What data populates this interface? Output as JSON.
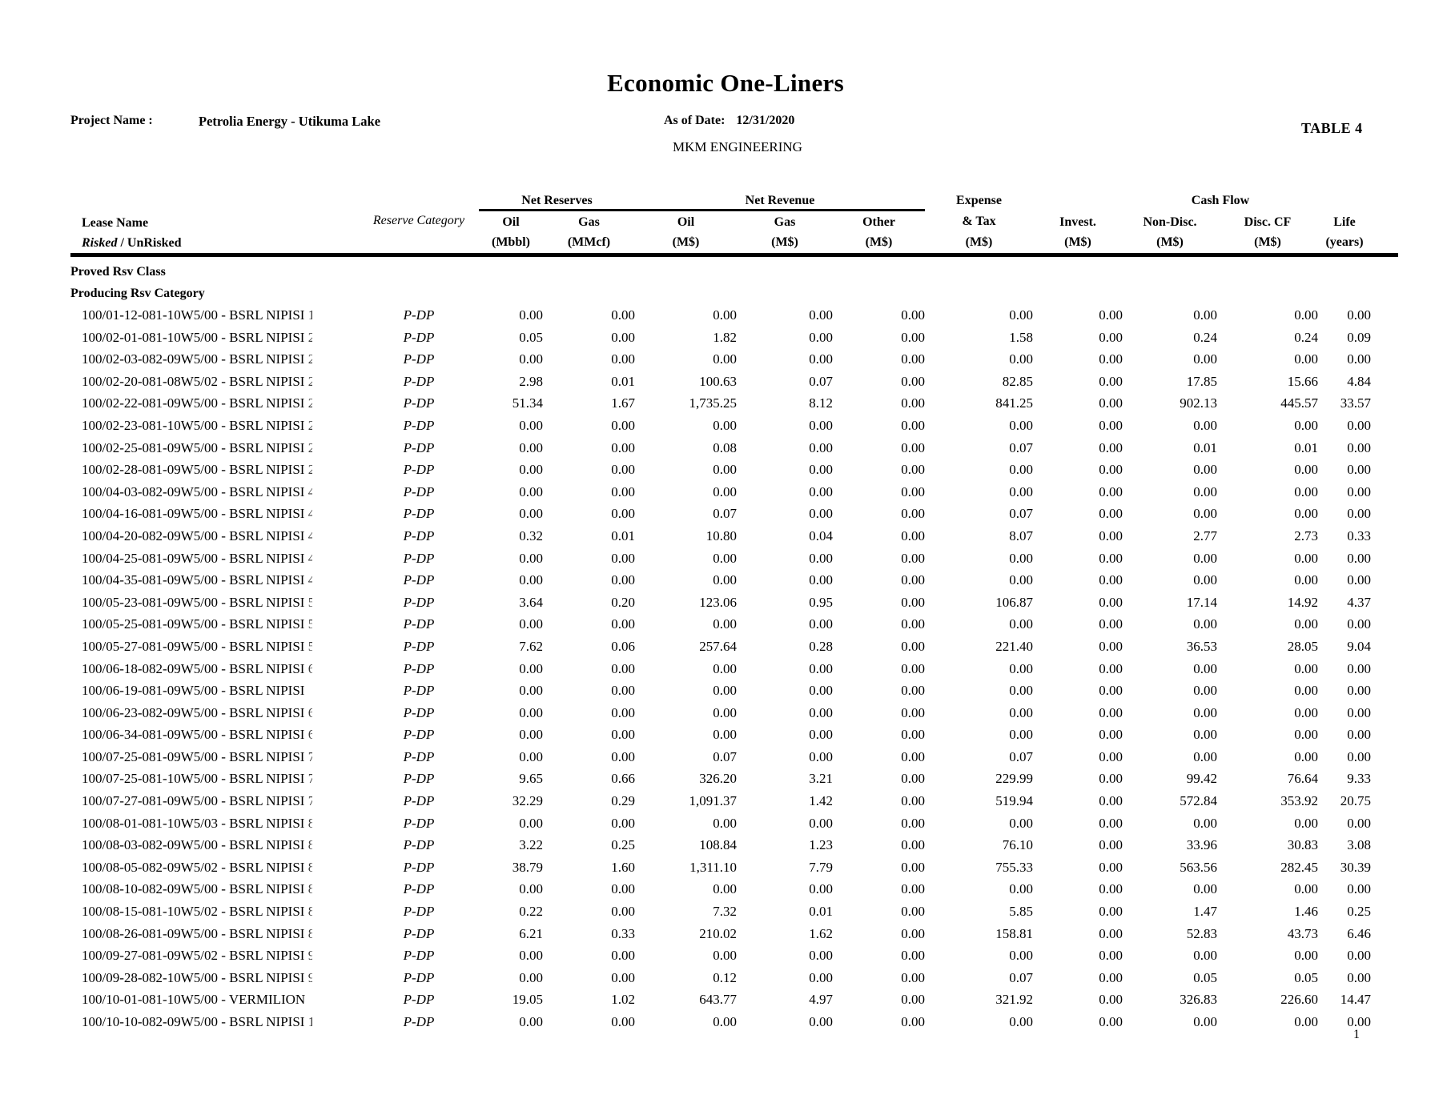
{
  "header": {
    "title": "Economic One-Liners",
    "project_label": "Project Name :",
    "project_name": "Petrolia Energy - Utikuma Lake",
    "as_of_label": "As of Date:",
    "as_of_date": "12/31/2020",
    "company": "MKM ENGINEERING",
    "table_label": "TABLE 4"
  },
  "table": {
    "groups": {
      "net_reserves": "Net Reserves",
      "net_revenue": "Net Revenue",
      "cash_flow": "Cash Flow"
    },
    "lease_header": {
      "line1": "Lease Name",
      "risked": "Risked",
      "unrisked": " / UnRisked"
    },
    "reserve_category_header": "Reserve Category",
    "cols": {
      "oil_res": {
        "name": "Oil",
        "unit": "(Mbbl)"
      },
      "gas_res": {
        "name": "Gas",
        "unit": "(MMcf)"
      },
      "oil_rev": {
        "name": "Oil",
        "unit": "(M$)"
      },
      "gas_rev": {
        "name": "Gas",
        "unit": "(M$)"
      },
      "other_rev": {
        "name": "Other",
        "unit": "(M$)"
      },
      "expense": {
        "line1": "Expense",
        "line2": "& Tax",
        "unit": "(M$)"
      },
      "invest": {
        "name": "Invest.",
        "unit": "(M$)"
      },
      "nondisc": {
        "name": "Non-Disc.",
        "unit": "(M$)"
      },
      "disccf": {
        "name": "Disc. CF",
        "unit": "(M$)"
      },
      "life": {
        "name": "Life",
        "unit": "(years)"
      }
    },
    "section_class": "Proved Rsv Class",
    "section_category": "Producing Rsv Category",
    "rows": [
      {
        "name": "100/01-12-081-10W5/00 - BSRL NIPISI",
        "partial": "1",
        "category": "P-DP",
        "values": [
          "0.00",
          "0.00",
          "0.00",
          "0.00",
          "0.00",
          "0.00",
          "0.00",
          "0.00",
          "0.00",
          "0.00"
        ]
      },
      {
        "name": "100/02-01-081-10W5/00 - BSRL NIPISI",
        "partial": "2",
        "category": "P-DP",
        "values": [
          "0.05",
          "0.00",
          "1.82",
          "0.00",
          "0.00",
          "1.58",
          "0.00",
          "0.24",
          "0.24",
          "0.09"
        ]
      },
      {
        "name": "100/02-03-082-09W5/00 - BSRL NIPISI",
        "partial": "2",
        "category": "P-DP",
        "values": [
          "0.00",
          "0.00",
          "0.00",
          "0.00",
          "0.00",
          "0.00",
          "0.00",
          "0.00",
          "0.00",
          "0.00"
        ]
      },
      {
        "name": "100/02-20-081-08W5/02 - BSRL NIPISI",
        "partial": "2",
        "category": "P-DP",
        "values": [
          "2.98",
          "0.01",
          "100.63",
          "0.07",
          "0.00",
          "82.85",
          "0.00",
          "17.85",
          "15.66",
          "4.84"
        ]
      },
      {
        "name": "100/02-22-081-09W5/00 - BSRL NIPISI",
        "partial": "2",
        "category": "P-DP",
        "values": [
          "51.34",
          "1.67",
          "1,735.25",
          "8.12",
          "0.00",
          "841.25",
          "0.00",
          "902.13",
          "445.57",
          "33.57"
        ]
      },
      {
        "name": "100/02-23-081-10W5/00 - BSRL NIPISI",
        "partial": "2",
        "category": "P-DP",
        "values": [
          "0.00",
          "0.00",
          "0.00",
          "0.00",
          "0.00",
          "0.00",
          "0.00",
          "0.00",
          "0.00",
          "0.00"
        ]
      },
      {
        "name": "100/02-25-081-09W5/00 - BSRL NIPISI",
        "partial": "2",
        "category": "P-DP",
        "values": [
          "0.00",
          "0.00",
          "0.08",
          "0.00",
          "0.00",
          "0.07",
          "0.00",
          "0.01",
          "0.01",
          "0.00"
        ]
      },
      {
        "name": "100/02-28-081-09W5/00 - BSRL NIPISI",
        "partial": "2",
        "category": "P-DP",
        "values": [
          "0.00",
          "0.00",
          "0.00",
          "0.00",
          "0.00",
          "0.00",
          "0.00",
          "0.00",
          "0.00",
          "0.00"
        ]
      },
      {
        "name": "100/04-03-082-09W5/00 - BSRL NIPISI",
        "partial": "4",
        "category": "P-DP",
        "values": [
          "0.00",
          "0.00",
          "0.00",
          "0.00",
          "0.00",
          "0.00",
          "0.00",
          "0.00",
          "0.00",
          "0.00"
        ]
      },
      {
        "name": "100/04-16-081-09W5/00 - BSRL NIPISI",
        "partial": "4",
        "category": "P-DP",
        "values": [
          "0.00",
          "0.00",
          "0.07",
          "0.00",
          "0.00",
          "0.07",
          "0.00",
          "0.00",
          "0.00",
          "0.00"
        ]
      },
      {
        "name": "100/04-20-082-09W5/00 - BSRL NIPISI",
        "partial": "4",
        "category": "P-DP",
        "values": [
          "0.32",
          "0.01",
          "10.80",
          "0.04",
          "0.00",
          "8.07",
          "0.00",
          "2.77",
          "2.73",
          "0.33"
        ]
      },
      {
        "name": "100/04-25-081-09W5/00 - BSRL NIPISI",
        "partial": "4",
        "category": "P-DP",
        "values": [
          "0.00",
          "0.00",
          "0.00",
          "0.00",
          "0.00",
          "0.00",
          "0.00",
          "0.00",
          "0.00",
          "0.00"
        ]
      },
      {
        "name": "100/04-35-081-09W5/00 - BSRL NIPISI",
        "partial": "4",
        "category": "P-DP",
        "values": [
          "0.00",
          "0.00",
          "0.00",
          "0.00",
          "0.00",
          "0.00",
          "0.00",
          "0.00",
          "0.00",
          "0.00"
        ]
      },
      {
        "name": "100/05-23-081-09W5/00 - BSRL NIPISI",
        "partial": "5",
        "category": "P-DP",
        "values": [
          "3.64",
          "0.20",
          "123.06",
          "0.95",
          "0.00",
          "106.87",
          "0.00",
          "17.14",
          "14.92",
          "4.37"
        ]
      },
      {
        "name": "100/05-25-081-09W5/00 - BSRL NIPISI",
        "partial": "5",
        "category": "P-DP",
        "values": [
          "0.00",
          "0.00",
          "0.00",
          "0.00",
          "0.00",
          "0.00",
          "0.00",
          "0.00",
          "0.00",
          "0.00"
        ]
      },
      {
        "name": "100/05-27-081-09W5/00 - BSRL NIPISI",
        "partial": "5",
        "category": "P-DP",
        "values": [
          "7.62",
          "0.06",
          "257.64",
          "0.28",
          "0.00",
          "221.40",
          "0.00",
          "36.53",
          "28.05",
          "9.04"
        ]
      },
      {
        "name": "100/06-18-082-09W5/00 - BSRL NIPISI",
        "partial": "6",
        "category": "P-DP",
        "values": [
          "0.00",
          "0.00",
          "0.00",
          "0.00",
          "0.00",
          "0.00",
          "0.00",
          "0.00",
          "0.00",
          "0.00"
        ]
      },
      {
        "name": "100/06-19-081-09W5/00 - BSRL NIPISI",
        "partial": "",
        "category": "P-DP",
        "values": [
          "0.00",
          "0.00",
          "0.00",
          "0.00",
          "0.00",
          "0.00",
          "0.00",
          "0.00",
          "0.00",
          "0.00"
        ]
      },
      {
        "name": "100/06-23-082-09W5/00 - BSRL NIPISI",
        "partial": "6",
        "category": "P-DP",
        "values": [
          "0.00",
          "0.00",
          "0.00",
          "0.00",
          "0.00",
          "0.00",
          "0.00",
          "0.00",
          "0.00",
          "0.00"
        ]
      },
      {
        "name": "100/06-34-081-09W5/00 - BSRL NIPISI",
        "partial": "6",
        "category": "P-DP",
        "values": [
          "0.00",
          "0.00",
          "0.00",
          "0.00",
          "0.00",
          "0.00",
          "0.00",
          "0.00",
          "0.00",
          "0.00"
        ]
      },
      {
        "name": "100/07-25-081-09W5/00 - BSRL NIPISI",
        "partial": "7",
        "category": "P-DP",
        "values": [
          "0.00",
          "0.00",
          "0.07",
          "0.00",
          "0.00",
          "0.07",
          "0.00",
          "0.00",
          "0.00",
          "0.00"
        ]
      },
      {
        "name": "100/07-25-081-10W5/00 - BSRL NIPISI",
        "partial": "7",
        "category": "P-DP",
        "values": [
          "9.65",
          "0.66",
          "326.20",
          "3.21",
          "0.00",
          "229.99",
          "0.00",
          "99.42",
          "76.64",
          "9.33"
        ]
      },
      {
        "name": "100/07-27-081-09W5/00 - BSRL NIPISI",
        "partial": "7",
        "category": "P-DP",
        "values": [
          "32.29",
          "0.29",
          "1,091.37",
          "1.42",
          "0.00",
          "519.94",
          "0.00",
          "572.84",
          "353.92",
          "20.75"
        ]
      },
      {
        "name": "100/08-01-081-10W5/03 - BSRL NIPISI",
        "partial": "8",
        "category": "P-DP",
        "values": [
          "0.00",
          "0.00",
          "0.00",
          "0.00",
          "0.00",
          "0.00",
          "0.00",
          "0.00",
          "0.00",
          "0.00"
        ]
      },
      {
        "name": "100/08-03-082-09W5/00 - BSRL NIPISI",
        "partial": "8",
        "category": "P-DP",
        "values": [
          "3.22",
          "0.25",
          "108.84",
          "1.23",
          "0.00",
          "76.10",
          "0.00",
          "33.96",
          "30.83",
          "3.08"
        ]
      },
      {
        "name": "100/08-05-082-09W5/02 - BSRL NIPISI",
        "partial": "8",
        "category": "P-DP",
        "values": [
          "38.79",
          "1.60",
          "1,311.10",
          "7.79",
          "0.00",
          "755.33",
          "0.00",
          "563.56",
          "282.45",
          "30.39"
        ]
      },
      {
        "name": "100/08-10-082-09W5/00 - BSRL NIPISI",
        "partial": "8",
        "category": "P-DP",
        "values": [
          "0.00",
          "0.00",
          "0.00",
          "0.00",
          "0.00",
          "0.00",
          "0.00",
          "0.00",
          "0.00",
          "0.00"
        ]
      },
      {
        "name": "100/08-15-081-10W5/02 - BSRL NIPISI",
        "partial": "8",
        "category": "P-DP",
        "values": [
          "0.22",
          "0.00",
          "7.32",
          "0.01",
          "0.00",
          "5.85",
          "0.00",
          "1.47",
          "1.46",
          "0.25"
        ]
      },
      {
        "name": "100/08-26-081-09W5/00 - BSRL NIPISI",
        "partial": "8",
        "category": "P-DP",
        "values": [
          "6.21",
          "0.33",
          "210.02",
          "1.62",
          "0.00",
          "158.81",
          "0.00",
          "52.83",
          "43.73",
          "6.46"
        ]
      },
      {
        "name": "100/09-27-081-09W5/02 - BSRL NIPISI",
        "partial": "9",
        "category": "P-DP",
        "values": [
          "0.00",
          "0.00",
          "0.00",
          "0.00",
          "0.00",
          "0.00",
          "0.00",
          "0.00",
          "0.00",
          "0.00"
        ]
      },
      {
        "name": "100/09-28-082-10W5/00 - BSRL NIPISI",
        "partial": "9",
        "category": "P-DP",
        "values": [
          "0.00",
          "0.00",
          "0.12",
          "0.00",
          "0.00",
          "0.07",
          "0.00",
          "0.05",
          "0.05",
          "0.00"
        ]
      },
      {
        "name": "100/10-01-081-10W5/00 - VERMILION",
        "partial": "",
        "category": "P-DP",
        "values": [
          "19.05",
          "1.02",
          "643.77",
          "4.97",
          "0.00",
          "321.92",
          "0.00",
          "326.83",
          "226.60",
          "14.47"
        ]
      },
      {
        "name": "100/10-10-082-09W5/00 - BSRL NIPISI",
        "partial": "1",
        "category": "P-DP",
        "values": [
          "0.00",
          "0.00",
          "0.00",
          "0.00",
          "0.00",
          "0.00",
          "0.00",
          "0.00",
          "0.00",
          "0.00"
        ]
      }
    ]
  },
  "footer": {
    "page_number": "1"
  }
}
